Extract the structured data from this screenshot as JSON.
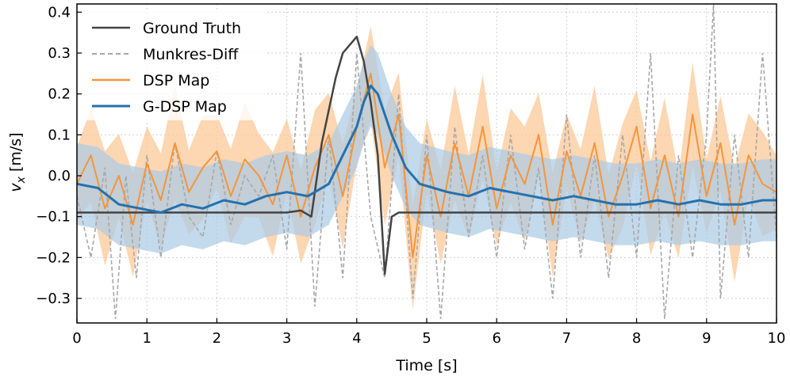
{
  "chart_data": {
    "type": "line",
    "title": "",
    "xlabel": "Time [s]",
    "ylabel_main": "v",
    "ylabel_sub": "x",
    "ylabel_unit": " [m/s]",
    "xlim": [
      0,
      10
    ],
    "ylim": [
      -0.36,
      0.42
    ],
    "xticks": [
      0,
      1,
      2,
      3,
      4,
      5,
      6,
      7,
      8,
      9,
      10
    ],
    "xtick_labels": [
      "0",
      "1",
      "2",
      "3",
      "4",
      "5",
      "6",
      "7",
      "8",
      "9",
      "10"
    ],
    "yticks": [
      -0.3,
      -0.2,
      -0.1,
      0.0,
      0.1,
      0.2,
      0.3,
      0.4
    ],
    "ytick_labels": [
      "−0.3",
      "−0.2",
      "−0.1",
      "0.0",
      "0.1",
      "0.2",
      "0.3",
      "0.4"
    ],
    "grid": true,
    "legend_position": "top-left",
    "colors": {
      "ground_truth": "#444444",
      "munkres": "#a8a8a8",
      "dsp": "#f5953a",
      "dsp_band": "#fcc898",
      "gdsp": "#2471ad",
      "gdsp_band": "#a9cbe6"
    },
    "series": [
      {
        "name": "Ground Truth",
        "style": "solid",
        "x": [
          0,
          0.5,
          1.0,
          1.5,
          2.0,
          2.5,
          3.0,
          3.2,
          3.35,
          3.5,
          3.6,
          3.7,
          3.8,
          3.9,
          4.0,
          4.1,
          4.2,
          4.3,
          4.4,
          4.5,
          4.6,
          5.0,
          6.0,
          7.0,
          8.0,
          9.0,
          10.0
        ],
        "y": [
          -0.09,
          -0.09,
          -0.09,
          -0.09,
          -0.09,
          -0.09,
          -0.09,
          -0.085,
          -0.1,
          0.08,
          0.16,
          0.24,
          0.3,
          0.32,
          0.34,
          0.28,
          0.18,
          0.05,
          -0.24,
          -0.1,
          -0.09,
          -0.09,
          -0.09,
          -0.09,
          -0.09,
          -0.09,
          -0.09
        ]
      },
      {
        "name": "Munkres-Diff",
        "style": "dashed",
        "x": [
          0,
          0.2,
          0.4,
          0.55,
          0.7,
          0.85,
          1.0,
          1.2,
          1.4,
          1.6,
          1.8,
          2.0,
          2.2,
          2.4,
          2.6,
          2.8,
          3.0,
          3.2,
          3.4,
          3.6,
          3.8,
          4.0,
          4.2,
          4.4,
          4.6,
          4.8,
          5.0,
          5.2,
          5.4,
          5.6,
          5.8,
          6.0,
          6.2,
          6.4,
          6.6,
          6.8,
          7.0,
          7.2,
          7.4,
          7.6,
          7.8,
          8.0,
          8.2,
          8.4,
          8.6,
          8.8,
          9.0,
          9.1,
          9.2,
          9.4,
          9.6,
          9.8,
          10.0
        ],
        "y": [
          -0.05,
          -0.2,
          0.02,
          -0.35,
          0.0,
          -0.25,
          0.05,
          -0.2,
          0.08,
          -0.1,
          -0.15,
          0.06,
          -0.12,
          0.0,
          -0.05,
          0.05,
          -0.18,
          0.3,
          -0.32,
          0.1,
          -0.25,
          0.3,
          -0.1,
          -0.25,
          0.2,
          -0.3,
          0.1,
          -0.35,
          0.12,
          -0.15,
          0.05,
          -0.2,
          0.1,
          -0.18,
          0.02,
          -0.3,
          0.15,
          -0.2,
          0.05,
          -0.25,
          0.1,
          -0.2,
          0.3,
          -0.35,
          0.05,
          -0.2,
          0.1,
          0.42,
          -0.3,
          0.1,
          -0.2,
          0.3,
          -0.15
        ]
      },
      {
        "name": "DSP Map",
        "style": "solid",
        "x": [
          0,
          0.2,
          0.4,
          0.6,
          0.8,
          1.0,
          1.2,
          1.4,
          1.6,
          1.8,
          2.0,
          2.2,
          2.4,
          2.6,
          2.8,
          3.0,
          3.2,
          3.4,
          3.6,
          3.8,
          4.0,
          4.2,
          4.4,
          4.6,
          4.8,
          5.0,
          5.2,
          5.4,
          5.6,
          5.8,
          6.0,
          6.2,
          6.4,
          6.6,
          6.8,
          7.0,
          7.2,
          7.4,
          7.6,
          7.8,
          8.0,
          8.2,
          8.4,
          8.6,
          8.8,
          9.0,
          9.2,
          9.4,
          9.6,
          9.8,
          10.0
        ],
        "y": [
          -0.02,
          0.05,
          -0.08,
          0.0,
          -0.12,
          0.03,
          -0.06,
          0.08,
          -0.04,
          0.02,
          0.06,
          -0.05,
          0.04,
          0.0,
          -0.07,
          0.05,
          -0.1,
          0.02,
          0.1,
          -0.05,
          0.12,
          0.25,
          0.02,
          0.15,
          -0.2,
          0.05,
          -0.1,
          0.08,
          -0.05,
          0.12,
          -0.08,
          0.05,
          -0.02,
          0.1,
          -0.12,
          0.06,
          -0.05,
          0.08,
          -0.1,
          0.0,
          0.12,
          -0.08,
          0.05,
          -0.1,
          0.15,
          -0.05,
          0.08,
          -0.12,
          0.05,
          -0.02,
          -0.04
        ]
      },
      {
        "name": "G-DSP Map",
        "style": "solid",
        "x": [
          0,
          0.3,
          0.6,
          0.9,
          1.2,
          1.5,
          1.8,
          2.1,
          2.4,
          2.7,
          3.0,
          3.3,
          3.6,
          3.8,
          4.0,
          4.1,
          4.2,
          4.3,
          4.5,
          4.7,
          4.9,
          5.1,
          5.3,
          5.6,
          5.9,
          6.2,
          6.5,
          6.8,
          7.1,
          7.4,
          7.7,
          8.0,
          8.3,
          8.6,
          8.9,
          9.2,
          9.5,
          9.8,
          10.0
        ],
        "y": [
          -0.02,
          -0.03,
          -0.07,
          -0.08,
          -0.09,
          -0.07,
          -0.08,
          -0.06,
          -0.07,
          -0.05,
          -0.04,
          -0.05,
          -0.02,
          0.05,
          0.12,
          0.18,
          0.22,
          0.2,
          0.1,
          0.02,
          -0.02,
          -0.03,
          -0.04,
          -0.05,
          -0.03,
          -0.04,
          -0.05,
          -0.06,
          -0.05,
          -0.06,
          -0.07,
          -0.07,
          -0.06,
          -0.07,
          -0.06,
          -0.07,
          -0.07,
          -0.06,
          -0.06
        ]
      }
    ]
  }
}
